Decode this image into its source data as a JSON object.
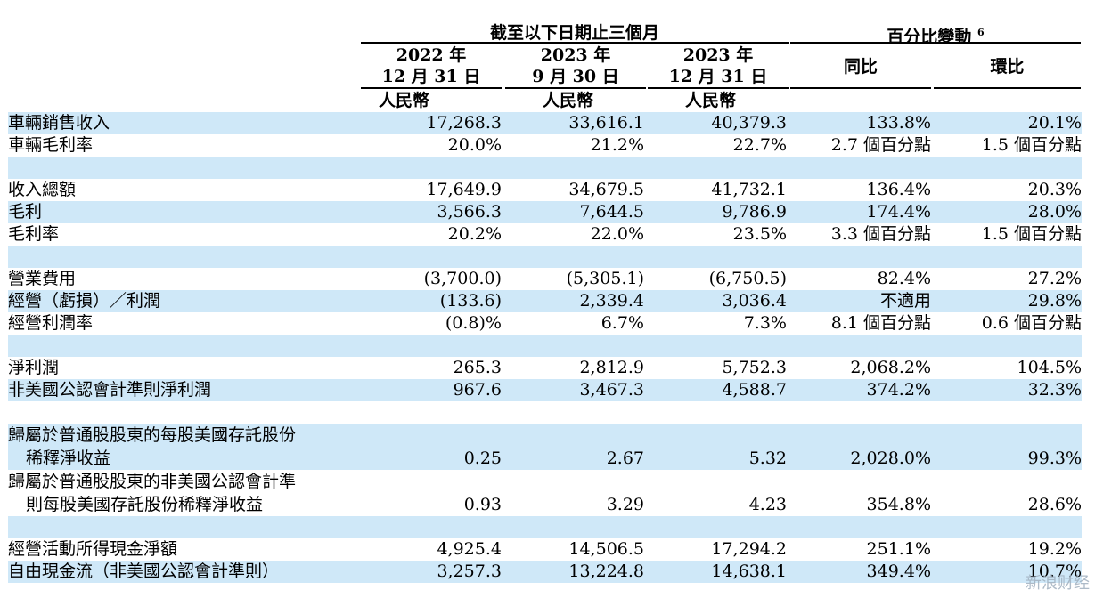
{
  "header": {
    "group_period": "截至以下日期止三個月",
    "group_change": "百分比變動",
    "group_change_footnote": "6",
    "columns": [
      {
        "line1": "2022 年",
        "line2": "12 月 31 日",
        "currency": "人民幣"
      },
      {
        "line1": "2023 年",
        "line2": "9 月 30 日",
        "currency": "人民幣"
      },
      {
        "line1": "2023 年",
        "line2": "12 月 31 日",
        "currency": "人民幣"
      }
    ],
    "yoy": "同比",
    "qoq": "環比"
  },
  "rows": [
    {
      "label": "車輛銷售收入",
      "values": [
        "17,268.3",
        "33,616.1",
        "40,379.3",
        "133.8%",
        "20.1%"
      ]
    },
    {
      "label": "車輛毛利率",
      "values": [
        "20.0%",
        "21.2%",
        "22.7%",
        "2.7 個百分點",
        "1.5 個百分點"
      ]
    },
    {
      "label": "收入總額",
      "values": [
        "17,649.9",
        "34,679.5",
        "41,732.1",
        "136.4%",
        "20.3%"
      ]
    },
    {
      "label": "毛利",
      "values": [
        "3,566.3",
        "7,644.5",
        "9,786.9",
        "174.4%",
        "28.0%"
      ]
    },
    {
      "label": "毛利率",
      "values": [
        "20.2%",
        "22.0%",
        "23.5%",
        "3.3 個百分點",
        "1.5 個百分點"
      ]
    },
    {
      "label": "營業費用",
      "values": [
        "(3,700.0)",
        "(5,305.1)",
        "(6,750.5)",
        "82.4%",
        "27.2%"
      ]
    },
    {
      "label": "經營（虧損）／利潤",
      "values": [
        "(133.6)",
        "2,339.4",
        "3,036.4",
        "不適用",
        "29.8%"
      ]
    },
    {
      "label": "經營利潤率",
      "values": [
        "(0.8)%",
        "6.7%",
        "7.3%",
        "8.1 個百分點",
        "0.6 個百分點"
      ]
    },
    {
      "label": "淨利潤",
      "values": [
        "265.3",
        "2,812.9",
        "5,752.3",
        "2,068.2%",
        "104.5%"
      ]
    },
    {
      "label": "非美國公認會計準則淨利潤",
      "values": [
        "967.6",
        "3,467.3",
        "4,588.7",
        "374.2%",
        "32.3%"
      ]
    },
    {
      "label_line1": "歸屬於普通股股東的每股美國存託股份",
      "label_line2": "稀釋淨收益",
      "values": [
        "0.25",
        "2.67",
        "5.32",
        "2,028.0%",
        "99.3%"
      ]
    },
    {
      "label_line1": "歸屬於普通股股東的非美國公認會計準",
      "label_line2": "則每股美國存託股份稀釋淨收益",
      "values": [
        "0.93",
        "3.29",
        "4.23",
        "354.8%",
        "28.6%"
      ]
    },
    {
      "label": "經營活動所得現金淨額",
      "values": [
        "4,925.4",
        "14,506.5",
        "17,294.2",
        "251.1%",
        "19.2%"
      ]
    },
    {
      "label": "自由現金流（非美國公認會計準則）",
      "values": [
        "3,257.3",
        "13,224.8",
        "14,638.1",
        "349.4%",
        "10.7%"
      ]
    }
  ],
  "watermark": "新浪财经"
}
